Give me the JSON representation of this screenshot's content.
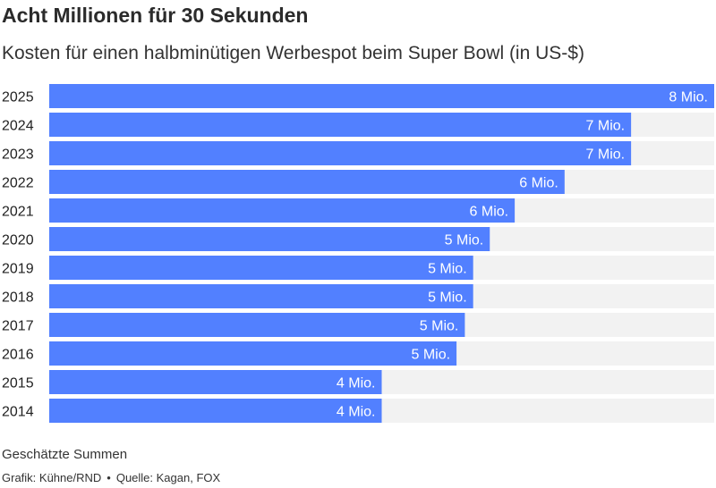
{
  "header": {
    "title": "Acht Millionen für 30 Sekunden",
    "subtitle": "Kosten für einen halbminütigen Werbespot beim Super Bowl (in US-$)"
  },
  "footer": {
    "note": "Geschätzte Summen",
    "credit": "Grafik: Kühne/RND",
    "separator": "•",
    "source": "Quelle: Kagan, FOX"
  },
  "colors": {
    "bar": "#5280ff",
    "track": "#f2f2f2",
    "label_inside": "#ffffff",
    "category": "#222222"
  },
  "chart_data": {
    "type": "bar",
    "orientation": "horizontal",
    "categories": [
      "2025",
      "2024",
      "2023",
      "2022",
      "2021",
      "2020",
      "2019",
      "2018",
      "2017",
      "2016",
      "2015",
      "2014"
    ],
    "values": [
      8.0,
      7.0,
      7.0,
      6.2,
      5.6,
      5.3,
      5.1,
      5.1,
      5.0,
      4.9,
      4.0,
      4.0
    ],
    "data_labels": [
      "8 Mio.",
      "7 Mio.",
      "7 Mio.",
      "6 Mio.",
      "6 Mio.",
      "5 Mio.",
      "5 Mio.",
      "5 Mio.",
      "5 Mio.",
      "5 Mio.",
      "4 Mio.",
      "4 Mio."
    ],
    "unit": "Mio. US-$",
    "xlim": [
      0,
      8
    ],
    "grid": false,
    "legend": "none"
  }
}
